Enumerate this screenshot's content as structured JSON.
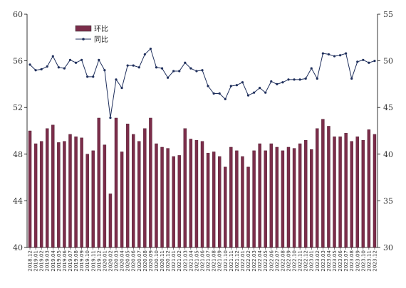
{
  "chart_data": {
    "type": "bar+line",
    "title": "",
    "categories": [
      "2018.12",
      "2019.01",
      "2019.02",
      "2019.03",
      "2019.04",
      "2019.05",
      "2019.06",
      "2019.07",
      "2019.08",
      "2019.09",
      "2019.10",
      "2019.11",
      "2019.12",
      "2020.01",
      "2020.02",
      "2020.03",
      "2020.04",
      "2020.05",
      "2020.06",
      "2020.07",
      "2020.08",
      "2020.09",
      "2020.10",
      "2020.11",
      "2020.12",
      "2021.01",
      "2021.02",
      "2021.03",
      "2021.04",
      "2021.05",
      "2021.06",
      "2021.07",
      "2021.08",
      "2021.09",
      "2021.10",
      "2021.11",
      "2021.12",
      "2022.01",
      "2022.02",
      "2022.03",
      "2022.04",
      "2022.05",
      "2022.06",
      "2022.07",
      "2022.08",
      "2022.09",
      "2022.10",
      "2022.11",
      "2022.12",
      "2023.01",
      "2023.02",
      "2023.03",
      "2023.04",
      "2023.05",
      "2023.06",
      "2023.07",
      "2023.08",
      "2023.09",
      "2023.10",
      "2023.11",
      "2023.12"
    ],
    "left_axis": {
      "ylim": [
        40,
        60
      ],
      "ticks": [
        "40",
        "44",
        "48",
        "52",
        "56",
        "60"
      ]
    },
    "right_axis": {
      "ylim": [
        30,
        55
      ],
      "ticks": [
        "30",
        "35",
        "40",
        "45",
        "50",
        "55"
      ]
    },
    "legend_position": "top-left",
    "grid": false,
    "series": [
      {
        "name": "环比",
        "type": "bar",
        "axis": "left",
        "color": "#7b2d4a",
        "values": [
          50.0,
          48.9,
          49.1,
          50.2,
          50.5,
          49.0,
          49.1,
          49.7,
          49.5,
          49.4,
          48.0,
          48.3,
          51.1,
          48.8,
          44.6,
          51.1,
          48.2,
          50.6,
          49.7,
          49.1,
          50.2,
          51.1,
          48.9,
          48.6,
          48.5,
          47.8,
          47.9,
          50.2,
          49.3,
          49.2,
          49.1,
          48.1,
          48.2,
          47.8,
          46.9,
          48.6,
          48.3,
          47.8,
          46.9,
          48.3,
          48.9,
          48.3,
          48.9,
          48.6,
          48.3,
          48.6,
          48.5,
          48.9,
          49.2,
          48.4,
          50.2,
          51.0,
          50.4,
          49.5,
          49.5,
          49.8,
          49.1,
          49.5,
          49.2,
          50.1,
          49.7
        ]
      },
      {
        "name": "同比",
        "type": "line",
        "axis": "right",
        "color": "#1f2f5c",
        "values": [
          49.6,
          49.0,
          49.1,
          49.4,
          50.5,
          49.3,
          49.2,
          50.1,
          49.8,
          50.1,
          48.3,
          48.3,
          50.1,
          49.0,
          43.9,
          48.0,
          47.1,
          49.5,
          49.5,
          49.3,
          50.7,
          51.3,
          49.3,
          49.2,
          48.2,
          48.9,
          48.9,
          49.8,
          49.2,
          48.9,
          49.0,
          47.3,
          46.5,
          46.5,
          45.9,
          47.3,
          47.4,
          47.7,
          46.3,
          46.6,
          47.1,
          46.6,
          47.8,
          47.5,
          47.7,
          48.0,
          48.0,
          48.0,
          48.1,
          49.2,
          48.1,
          50.8,
          50.7,
          50.5,
          50.6,
          50.8,
          48.1,
          49.9,
          50.1,
          49.8,
          50.0
        ]
      }
    ]
  }
}
